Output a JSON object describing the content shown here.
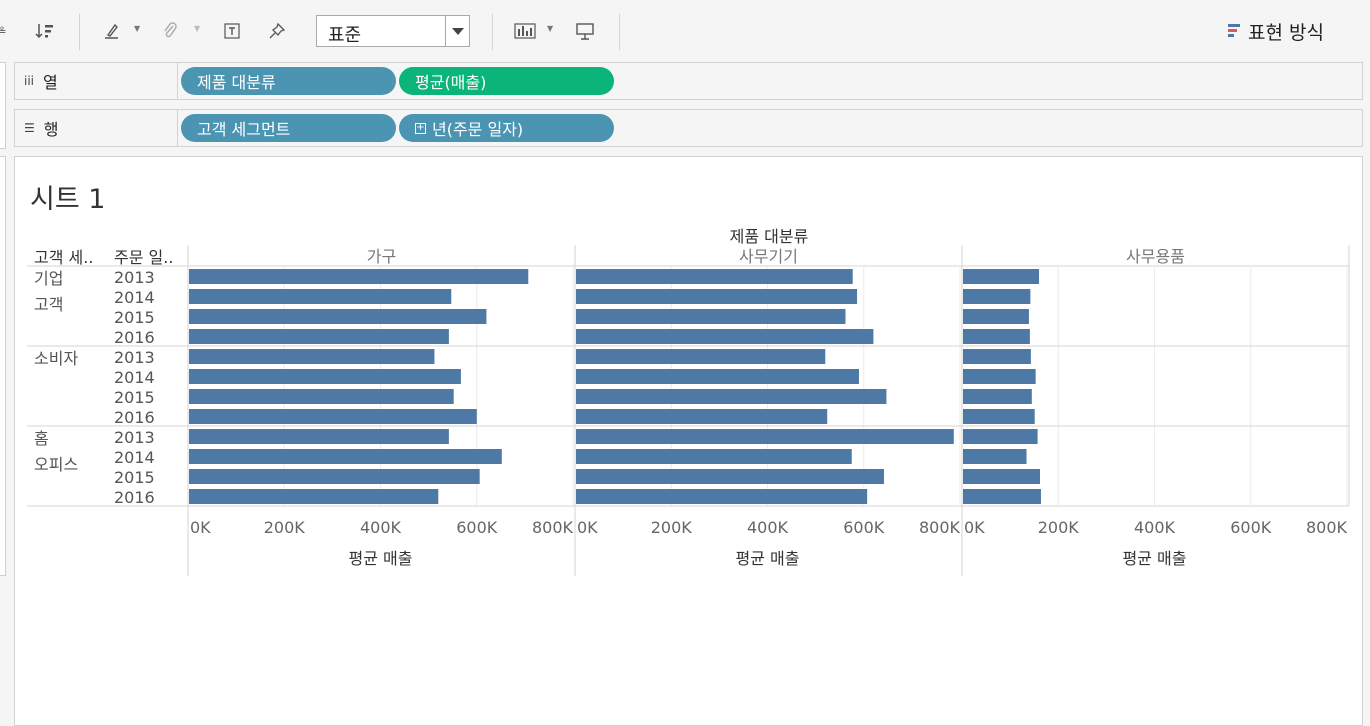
{
  "toolbar": {
    "fit_value": "표준",
    "icons": [
      "sort-descending-icon",
      "highlight-pen-icon",
      "paperclip-icon",
      "text-label-icon",
      "pin-icon",
      "chart-type-icon",
      "presentation-icon"
    ],
    "show_me_label": "표현 방식"
  },
  "shelves": {
    "columns": {
      "label": "열",
      "pills": [
        "제품 대분류",
        "평균(매출)"
      ]
    },
    "rows": {
      "label": "행",
      "pills": [
        "고객 세그먼트",
        "년(주문 일자)"
      ]
    }
  },
  "sheet": {
    "title": "시트 1"
  },
  "colors": {
    "bar": "#4e79a7",
    "dimension_pill": "#4b95b2",
    "measure_pill": "#0bb479"
  },
  "chart_data": {
    "type": "bar",
    "orientation": "horizontal",
    "column_header_title": "제품 대분류",
    "row_header_titles": [
      "고객 세..",
      "주문 일.."
    ],
    "panes": [
      "가구",
      "사무기기",
      "사무용품"
    ],
    "segments": [
      {
        "name_lines": [
          "기업",
          "고객"
        ],
        "years": [
          "2013",
          "2014",
          "2015",
          "2016"
        ]
      },
      {
        "name_lines": [
          "소비자"
        ],
        "years": [
          "2013",
          "2014",
          "2015",
          "2016"
        ]
      },
      {
        "name_lines": [
          "홈",
          "오피스"
        ],
        "years": [
          "2013",
          "2014",
          "2015",
          "2016"
        ]
      }
    ],
    "values": {
      "가구": [
        [
          705000,
          545000,
          618000,
          540000
        ],
        [
          510000,
          565000,
          550000,
          598000
        ],
        [
          540000,
          650000,
          604000,
          518000
        ]
      ],
      "사무기기": [
        [
          575000,
          584000,
          560000,
          618000
        ],
        [
          518000,
          588000,
          645000,
          522000
        ],
        [
          785000,
          573000,
          640000,
          605000
        ]
      ],
      "사무용품": [
        [
          158000,
          140000,
          137000,
          139000
        ],
        [
          141000,
          151000,
          143000,
          149000
        ],
        [
          155000,
          132000,
          160000,
          162000
        ]
      ]
    },
    "x_ticks": [
      0,
      200000,
      400000,
      600000,
      800000
    ],
    "x_tick_labels": [
      "0K",
      "200K",
      "400K",
      "600K",
      "800K"
    ],
    "xlim": [
      0,
      800000
    ],
    "xlabel": "평균 매출",
    "grid": true
  }
}
